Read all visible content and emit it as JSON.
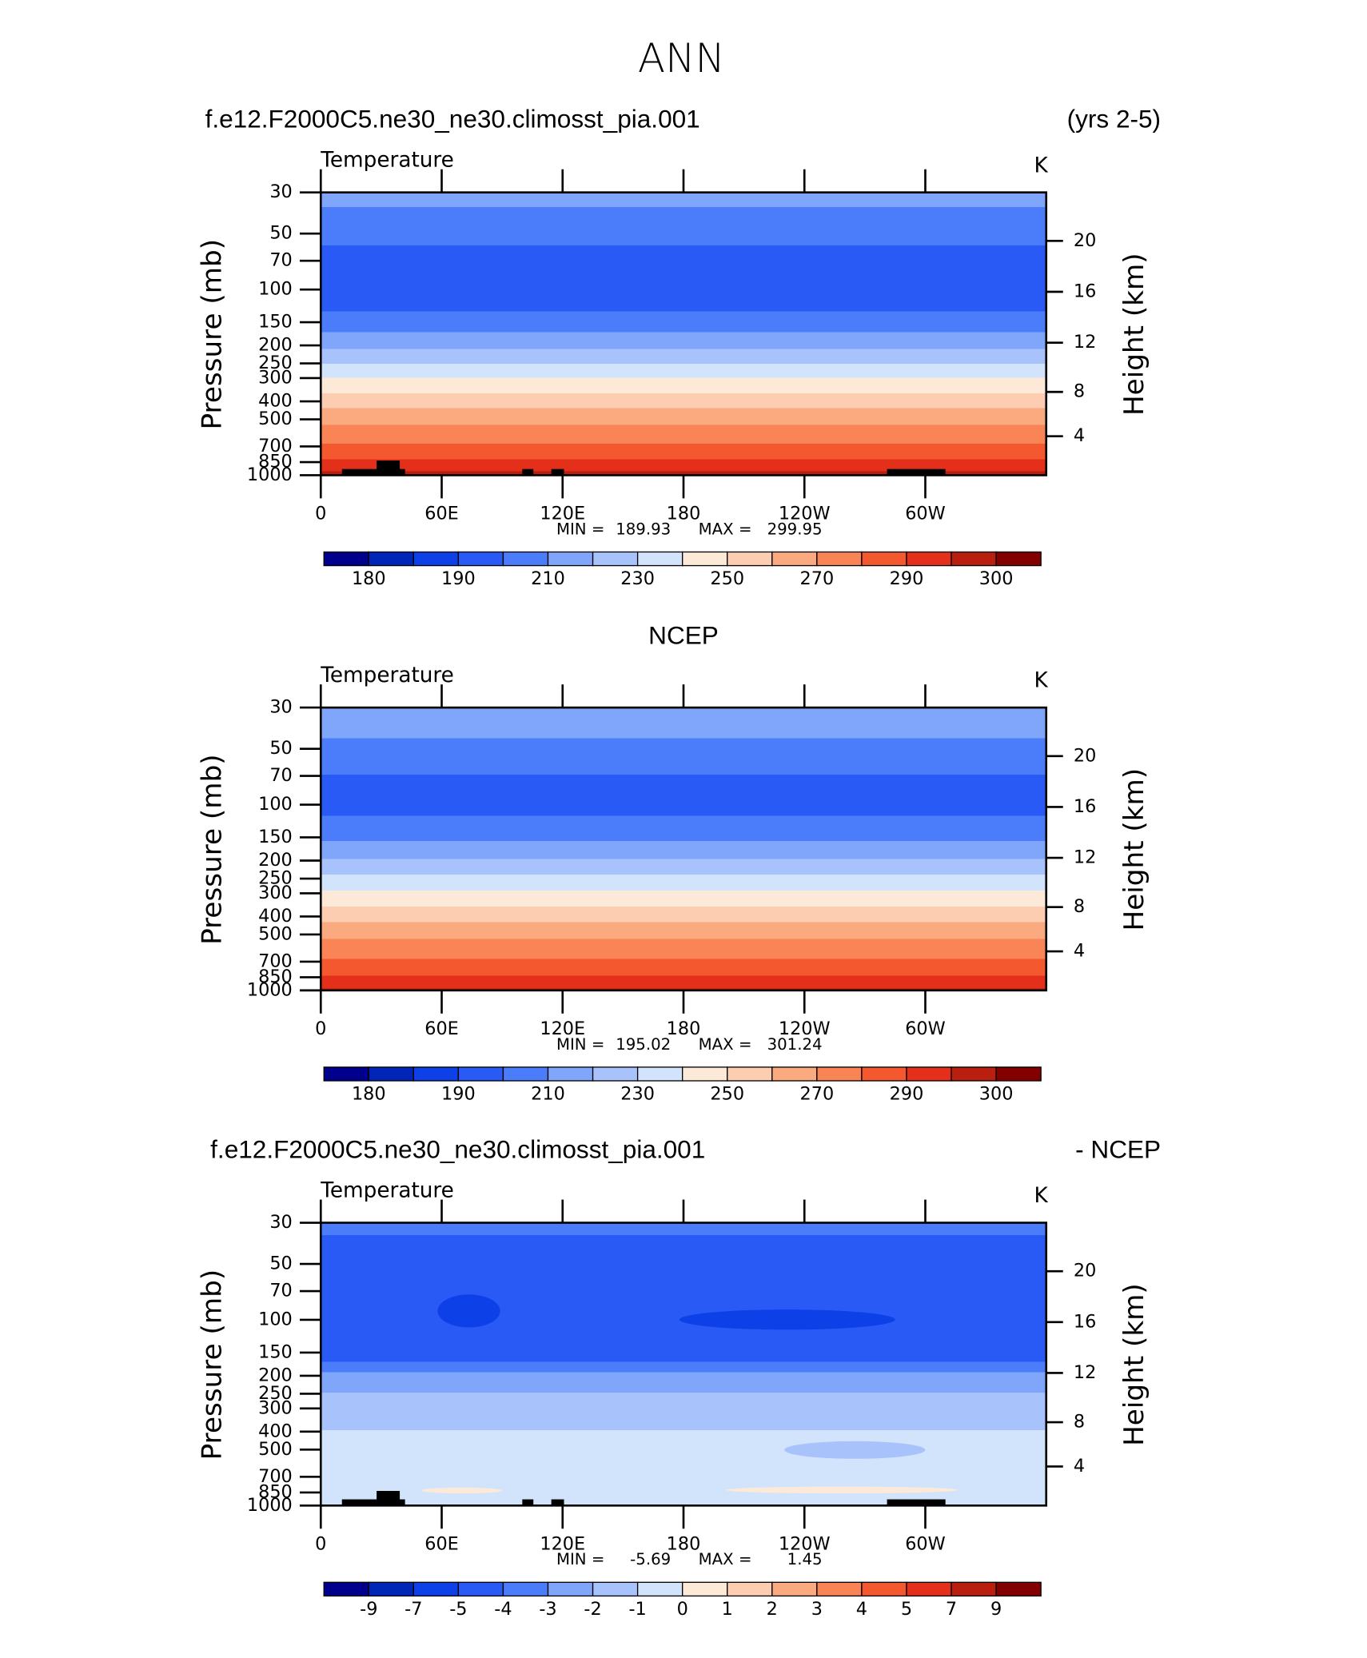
{
  "page_title": "ANN",
  "chart_data": [
    {
      "type": "contour",
      "title": "f.e12.F2000C5.ne30_ne30.climosst_pia.001",
      "title_right": "(yrs 2-5)",
      "subtitle": "Temperature",
      "units": "K",
      "ylabel": "Pressure (mb)",
      "y2label": "Height (km)",
      "yscale": "log",
      "ylim": [
        1000,
        30
      ],
      "yticks": [
        30,
        50,
        70,
        100,
        150,
        200,
        250,
        300,
        400,
        500,
        700,
        850,
        1000
      ],
      "y2ticks": [
        4,
        8,
        12,
        16,
        20
      ],
      "xlim": [
        0,
        360
      ],
      "xticks": [
        0,
        {
          "value": 60,
          "label": "60E"
        },
        {
          "value": 120,
          "label": "120E"
        },
        180,
        {
          "value": 240,
          "label": "120W"
        },
        {
          "value": 300,
          "label": "60W"
        }
      ],
      "min_label": "MIN =",
      "min": 189.93,
      "max_label": "MAX =",
      "max": 299.95,
      "colors": [
        "#00008c",
        "#0026b8",
        "#0d40e6",
        "#2a5af5",
        "#4b7dfa",
        "#80a6fc",
        "#a8c3fc",
        "#d2e4fc",
        "#fde9d8",
        "#fdcdb2",
        "#fba97f",
        "#f98556",
        "#f4582f",
        "#e4301a",
        "#b81f0f",
        "#820000"
      ],
      "levels": [
        180,
        185,
        190,
        200,
        210,
        220,
        230,
        240,
        250,
        260,
        270,
        280,
        290,
        295,
        300
      ],
      "colorbar_ticks": [
        180,
        190,
        210,
        230,
        250,
        270,
        290,
        300
      ],
      "band_p": [
        30,
        36,
        58,
        131,
        170,
        209,
        251,
        298,
        362,
        435,
        535,
        676,
        822,
        950,
        1000
      ],
      "band_fill": [
        5,
        4,
        3,
        4,
        5,
        6,
        7,
        8,
        9,
        10,
        11,
        12,
        13,
        14
      ],
      "patches": [],
      "topography": [
        {
          "lon": [
            10.5,
            41.8
          ],
          "p": 926
        },
        {
          "lon": [
            27.7,
            39.2
          ],
          "p": 834
        },
        {
          "lon": [
            100,
            105.5
          ],
          "p": 926
        },
        {
          "lon": [
            114.4,
            120.7
          ],
          "p": 926
        },
        {
          "lon": [
            281,
            310
          ],
          "p": 926
        }
      ]
    },
    {
      "type": "contour",
      "title": "NCEP",
      "subtitle": "Temperature",
      "units": "K",
      "ylabel": "Pressure (mb)",
      "y2label": "Height (km)",
      "yscale": "log",
      "ylim": [
        1000,
        30
      ],
      "yticks": [
        30,
        50,
        70,
        100,
        150,
        200,
        250,
        300,
        400,
        500,
        700,
        850,
        1000
      ],
      "y2ticks": [
        4,
        8,
        12,
        16,
        20
      ],
      "xlim": [
        0,
        360
      ],
      "xticks": [
        0,
        {
          "value": 60,
          "label": "60E"
        },
        {
          "value": 120,
          "label": "120E"
        },
        180,
        {
          "value": 240,
          "label": "120W"
        },
        {
          "value": 300,
          "label": "60W"
        }
      ],
      "min_label": "MIN =",
      "min": 195.02,
      "max_label": "MAX =",
      "max": 301.24,
      "colors": [
        "#00008c",
        "#0026b8",
        "#0d40e6",
        "#2a5af5",
        "#4b7dfa",
        "#80a6fc",
        "#a8c3fc",
        "#d2e4fc",
        "#fde9d8",
        "#fdcdb2",
        "#fba97f",
        "#f98556",
        "#f4582f",
        "#e4301a",
        "#b81f0f",
        "#820000"
      ],
      "levels": [
        180,
        185,
        190,
        200,
        210,
        220,
        230,
        240,
        250,
        260,
        270,
        280,
        290,
        295,
        300
      ],
      "colorbar_ticks": [
        180,
        190,
        210,
        230,
        250,
        270,
        290,
        300
      ],
      "band_p": [
        30,
        44,
        69,
        115,
        157,
        196,
        238,
        290,
        353,
        429,
        529,
        676,
        834,
        975,
        1000
      ],
      "band_fill": [
        5,
        4,
        3,
        4,
        5,
        6,
        7,
        8,
        9,
        10,
        11,
        12,
        13,
        14
      ],
      "patches": [],
      "topography": []
    },
    {
      "type": "contour",
      "title": "f.e12.F2000C5.ne30_ne30.climosst_pia.001",
      "title_right": "- NCEP",
      "subtitle": "Temperature",
      "units": "K",
      "ylabel": "Pressure (mb)",
      "y2label": "Height (km)",
      "yscale": "log",
      "ylim": [
        1000,
        30
      ],
      "yticks": [
        30,
        50,
        70,
        100,
        150,
        200,
        250,
        300,
        400,
        500,
        700,
        850,
        1000
      ],
      "y2ticks": [
        4,
        8,
        12,
        16,
        20
      ],
      "xlim": [
        0,
        360
      ],
      "xticks": [
        0,
        {
          "value": 60,
          "label": "60E"
        },
        {
          "value": 120,
          "label": "120E"
        },
        180,
        {
          "value": 240,
          "label": "120W"
        },
        {
          "value": 300,
          "label": "60W"
        }
      ],
      "min_label": "MIN =",
      "min": -5.69,
      "max_label": "MAX =",
      "max": 1.45,
      "colors": [
        "#00008c",
        "#0026b8",
        "#0d40e6",
        "#2a5af5",
        "#4b7dfa",
        "#80a6fc",
        "#a8c3fc",
        "#d2e4fc",
        "#fde9d8",
        "#fdcdb2",
        "#fba97f",
        "#f98556",
        "#f4582f",
        "#e4301a",
        "#b81f0f",
        "#820000"
      ],
      "levels": [
        -9,
        -7,
        -5,
        -4,
        -3,
        -2,
        -1,
        0,
        1,
        2,
        3,
        4,
        5,
        7,
        9
      ],
      "colorbar_ticks": [
        -9,
        -7,
        -5,
        -4,
        -3,
        -2,
        -1,
        0,
        1,
        2,
        3,
        4,
        5,
        7,
        9
      ],
      "band_p": [
        30,
        35,
        168,
        191,
        247,
        392,
        1000
      ],
      "band_fill": [
        4,
        3,
        4,
        5,
        6,
        7
      ],
      "patches": [
        {
          "lon": [
            58,
            89
          ],
          "p": [
            73,
            110
          ],
          "fill": 2
        },
        {
          "lon": [
            178,
            285
          ],
          "p": [
            88,
            113
          ],
          "fill": 2
        },
        {
          "lon": [
            50,
            90
          ],
          "p": [
            800,
            860
          ],
          "fill": 8
        },
        {
          "lon": [
            201,
            316
          ],
          "p": [
            790,
            860
          ],
          "fill": 8
        },
        {
          "lon": [
            230,
            300
          ],
          "p": [
            450,
            560
          ],
          "fill": 6
        }
      ],
      "topography": [
        {
          "lon": [
            10.5,
            41.8
          ],
          "p": 926
        },
        {
          "lon": [
            27.7,
            39.2
          ],
          "p": 834
        },
        {
          "lon": [
            100,
            105.5
          ],
          "p": 926
        },
        {
          "lon": [
            114.4,
            120.7
          ],
          "p": 926
        },
        {
          "lon": [
            281,
            310
          ],
          "p": 926
        }
      ]
    }
  ]
}
